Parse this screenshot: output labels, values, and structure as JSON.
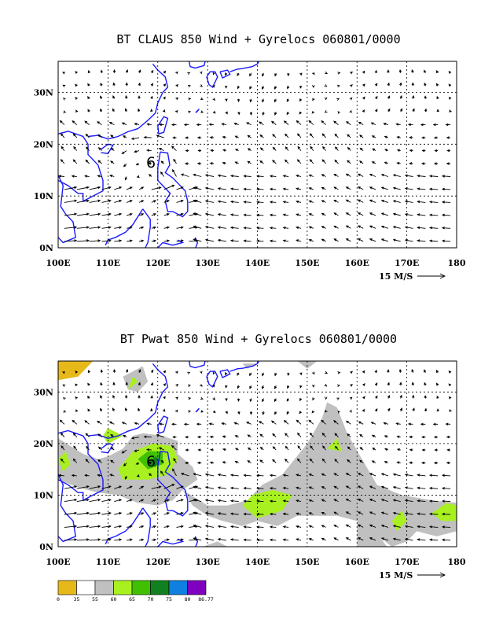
{
  "panels": [
    {
      "title": "BT CLAUS 850 Wind + Gyrelocs 060801/0000",
      "field": "CLAUS",
      "shaded": false
    },
    {
      "title": "BT Pwat 850 Wind + Gyrelocs 060801/0000",
      "field": "Pwat",
      "shaded": true
    }
  ],
  "axes": {
    "x_ticks": [
      "100E",
      "110E",
      "120E",
      "130E",
      "140E",
      "150E",
      "160E",
      "170E",
      "180"
    ],
    "x_values": [
      100,
      110,
      120,
      130,
      140,
      150,
      160,
      170,
      180
    ],
    "y_ticks": [
      "0N",
      "10N",
      "20N",
      "30N"
    ],
    "y_values": [
      0,
      10,
      20,
      30
    ],
    "lon_range": [
      100,
      180
    ],
    "lat_range": [
      0,
      36
    ]
  },
  "vector_reference": {
    "label": "15 M/S",
    "speed": 15
  },
  "storm_marker": {
    "symbol": "6",
    "lon": 119,
    "lat": 17
  },
  "colorbar": {
    "labels": [
      "0",
      "35",
      "55",
      "60",
      "65",
      "70",
      "75",
      "80",
      "86.77"
    ],
    "colors": [
      "#e6b81a",
      "#ffffff",
      "#c0c0c0",
      "#a8f020",
      "#40c000",
      "#108020",
      "#1080e0",
      "#8000c0"
    ]
  },
  "colors": {
    "coast": "#1a1aff",
    "shade_gray": "#c0c0c0",
    "shade_lime": "#a8f020",
    "shade_green": "#40c000",
    "shade_dkgreen": "#108020",
    "shade_gold": "#e6b81a"
  }
}
